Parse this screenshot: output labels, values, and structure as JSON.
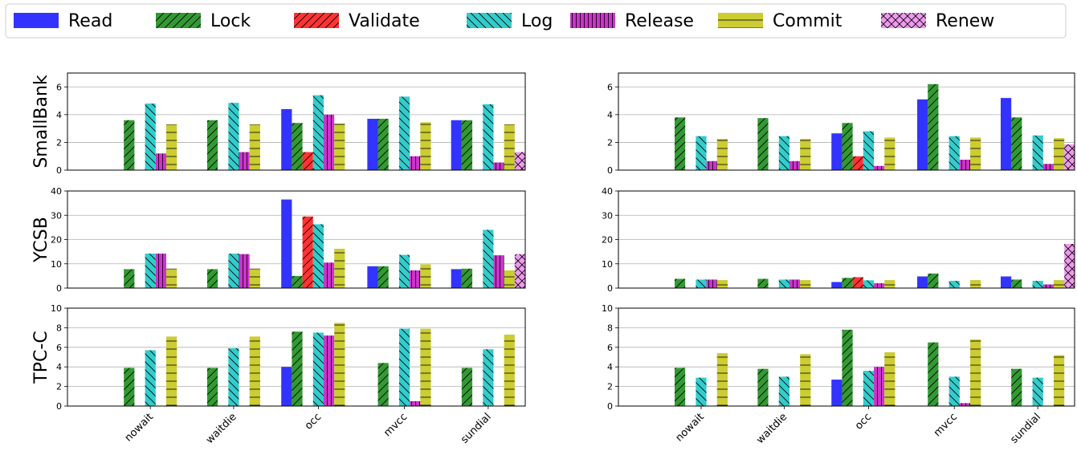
{
  "legend": {
    "placement": "top",
    "entries": [
      {
        "name": "Read",
        "color": "#3333ff",
        "hatch": "none"
      },
      {
        "name": "Lock",
        "color": "#339933",
        "hatch": "forward"
      },
      {
        "name": "Validate",
        "color": "#ff3333",
        "hatch": "forward"
      },
      {
        "name": "Log",
        "color": "#33cccc",
        "hatch": "back"
      },
      {
        "name": "Release",
        "color": "#cc33cc",
        "hatch": "vertical"
      },
      {
        "name": "Commit",
        "color": "#cccc33",
        "hatch": "horizontal"
      },
      {
        "name": "Renew",
        "color": "#ee99ee",
        "hatch": "cross"
      }
    ]
  },
  "chart_data": [
    {
      "type": "bar",
      "row": "SmallBank",
      "ylabel": "SmallBank",
      "ylim": [
        0,
        7
      ],
      "yticks": [
        0,
        2,
        4,
        6
      ],
      "grid": true,
      "categories": [
        "nowait",
        "waitdie",
        "occ",
        "mvcc",
        "sundial"
      ],
      "series": [
        {
          "name": "Read",
          "values": [
            0,
            0,
            4.4,
            3.7,
            3.6
          ]
        },
        {
          "name": "Lock",
          "values": [
            3.6,
            3.6,
            3.4,
            3.7,
            3.6
          ]
        },
        {
          "name": "Validate",
          "values": [
            0,
            0,
            1.3,
            0,
            0
          ]
        },
        {
          "name": "Log",
          "values": [
            4.8,
            4.85,
            5.4,
            5.3,
            4.75
          ]
        },
        {
          "name": "Release",
          "values": [
            1.2,
            1.3,
            4.0,
            1.0,
            0.55
          ]
        },
        {
          "name": "Commit",
          "values": [
            3.3,
            3.3,
            3.35,
            3.45,
            3.3
          ]
        },
        {
          "name": "Renew",
          "values": [
            0,
            0,
            0,
            0,
            1.3
          ]
        }
      ]
    },
    {
      "type": "bar",
      "row": "SmallBank",
      "ylabel": "",
      "ylim": [
        0,
        7
      ],
      "yticks": [
        0,
        2,
        4,
        6
      ],
      "grid": true,
      "categories": [
        "nowait",
        "waitdie",
        "occ",
        "mvcc",
        "sundial"
      ],
      "series": [
        {
          "name": "Read",
          "values": [
            0,
            0,
            2.65,
            5.1,
            5.2
          ]
        },
        {
          "name": "Lock",
          "values": [
            3.8,
            3.75,
            3.4,
            6.2,
            3.8
          ]
        },
        {
          "name": "Validate",
          "values": [
            0,
            0,
            1.0,
            0,
            0
          ]
        },
        {
          "name": "Log",
          "values": [
            2.45,
            2.45,
            2.8,
            2.45,
            2.5
          ]
        },
        {
          "name": "Release",
          "values": [
            0.65,
            0.65,
            0.3,
            0.75,
            0.45
          ]
        },
        {
          "name": "Commit",
          "values": [
            2.25,
            2.25,
            2.35,
            2.35,
            2.3
          ]
        },
        {
          "name": "Renew",
          "values": [
            0,
            0,
            0,
            0,
            1.85
          ]
        }
      ]
    },
    {
      "type": "bar",
      "row": "YCSB",
      "ylabel": "YCSB",
      "ylim": [
        0,
        40
      ],
      "yticks": [
        0,
        10,
        20,
        30,
        40
      ],
      "grid": true,
      "categories": [
        "nowait",
        "waitdie",
        "occ",
        "mvcc",
        "sundial"
      ],
      "series": [
        {
          "name": "Read",
          "values": [
            0,
            0,
            36.5,
            9.0,
            7.8
          ]
        },
        {
          "name": "Lock",
          "values": [
            7.8,
            7.8,
            5.0,
            9.0,
            8.0
          ]
        },
        {
          "name": "Validate",
          "values": [
            0,
            0,
            29.5,
            0,
            0
          ]
        },
        {
          "name": "Log",
          "values": [
            14.2,
            14.2,
            26.3,
            13.7,
            24.0
          ]
        },
        {
          "name": "Release",
          "values": [
            14.2,
            14.0,
            10.5,
            7.3,
            13.5
          ]
        },
        {
          "name": "Commit",
          "values": [
            8.0,
            8.0,
            16.2,
            9.8,
            7.3
          ]
        },
        {
          "name": "Renew",
          "values": [
            0,
            0,
            0,
            0,
            14.0
          ]
        }
      ]
    },
    {
      "type": "bar",
      "row": "YCSB",
      "ylabel": "",
      "ylim": [
        0,
        40
      ],
      "yticks": [
        0,
        10,
        20,
        30,
        40
      ],
      "grid": true,
      "categories": [
        "nowait",
        "waitdie",
        "occ",
        "mvcc",
        "sundial"
      ],
      "series": [
        {
          "name": "Read",
          "values": [
            0,
            0,
            2.5,
            4.8,
            4.8
          ]
        },
        {
          "name": "Lock",
          "values": [
            3.8,
            3.8,
            4.2,
            6.0,
            3.5
          ]
        },
        {
          "name": "Validate",
          "values": [
            0,
            0,
            4.5,
            0,
            0
          ]
        },
        {
          "name": "Log",
          "values": [
            3.5,
            3.5,
            3.2,
            3.0,
            3.0
          ]
        },
        {
          "name": "Release",
          "values": [
            3.5,
            3.5,
            2.0,
            0,
            1.5
          ]
        },
        {
          "name": "Commit",
          "values": [
            3.3,
            3.3,
            3.3,
            3.3,
            3.3
          ]
        },
        {
          "name": "Renew",
          "values": [
            0,
            0,
            0,
            0,
            18.2
          ]
        }
      ]
    },
    {
      "type": "bar",
      "row": "TPC-C",
      "ylabel": "TPC-C",
      "ylim": [
        0,
        10
      ],
      "yticks": [
        0,
        2,
        4,
        6,
        8,
        10
      ],
      "grid": true,
      "categories": [
        "nowait",
        "waitdie",
        "occ",
        "mvcc",
        "sundial"
      ],
      "series": [
        {
          "name": "Read",
          "values": [
            0,
            0,
            4.0,
            0,
            0
          ]
        },
        {
          "name": "Lock",
          "values": [
            3.9,
            3.9,
            7.6,
            4.4,
            3.9
          ]
        },
        {
          "name": "Validate",
          "values": [
            0,
            0,
            0,
            0,
            0
          ]
        },
        {
          "name": "Log",
          "values": [
            5.7,
            5.9,
            7.5,
            7.9,
            5.8
          ]
        },
        {
          "name": "Release",
          "values": [
            0,
            0,
            7.2,
            0.5,
            0
          ]
        },
        {
          "name": "Commit",
          "values": [
            7.1,
            7.1,
            8.5,
            7.9,
            7.3
          ]
        },
        {
          "name": "Renew",
          "values": [
            0,
            0,
            0,
            0,
            0
          ]
        }
      ]
    },
    {
      "type": "bar",
      "row": "TPC-C",
      "ylabel": "",
      "ylim": [
        0,
        10
      ],
      "yticks": [
        0,
        2,
        4,
        6,
        8,
        10
      ],
      "grid": true,
      "categories": [
        "nowait",
        "waitdie",
        "occ",
        "mvcc",
        "sundial"
      ],
      "series": [
        {
          "name": "Read",
          "values": [
            0,
            0,
            2.7,
            0,
            0
          ]
        },
        {
          "name": "Lock",
          "values": [
            3.9,
            3.8,
            7.8,
            6.5,
            3.8
          ]
        },
        {
          "name": "Validate",
          "values": [
            0,
            0,
            0,
            0,
            0
          ]
        },
        {
          "name": "Log",
          "values": [
            2.9,
            3.0,
            3.6,
            3.0,
            2.9
          ]
        },
        {
          "name": "Release",
          "values": [
            0,
            0,
            4.0,
            0.3,
            0
          ]
        },
        {
          "name": "Commit",
          "values": [
            5.4,
            5.3,
            5.5,
            6.8,
            5.2
          ]
        },
        {
          "name": "Renew",
          "values": [
            0,
            0,
            0,
            0,
            0
          ]
        }
      ]
    }
  ]
}
